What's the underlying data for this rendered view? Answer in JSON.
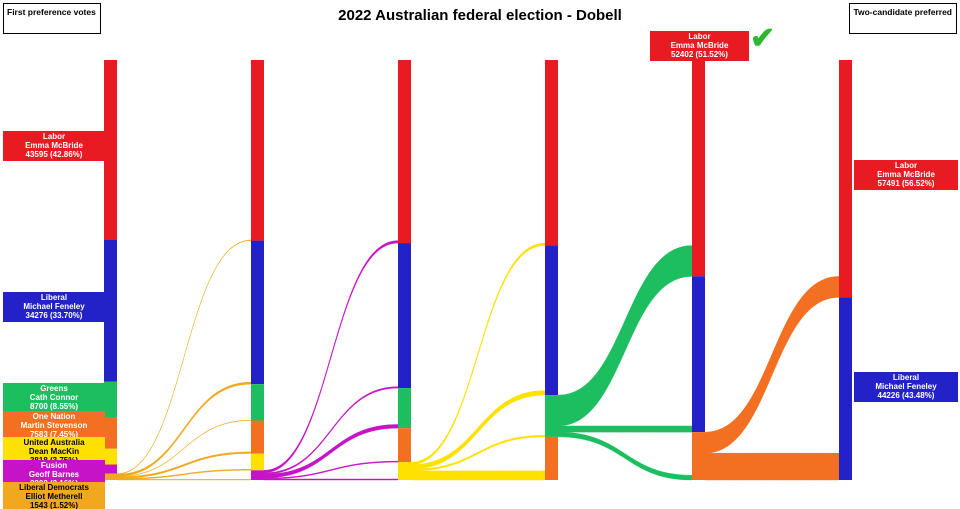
{
  "title": "2022 Australian federal election - Dobell",
  "left_header": "First preference votes",
  "right_header": "Two-candidate preferred",
  "winner_callout": {
    "party": "Labor",
    "candidate": "Emma McBride",
    "display": "52402 (51.52%)",
    "check_icon": "✔",
    "check_color": "#2eb82e"
  },
  "first_preferences": [
    {
      "key": "labor",
      "party": "Labor",
      "candidate": "Emma McBride",
      "display": "43595 (42.86%)",
      "votes": 43595,
      "pct": 42.86
    },
    {
      "key": "liberal",
      "party": "Liberal",
      "candidate": "Michael Feneley",
      "display": "34276 (33.70%)",
      "votes": 34276,
      "pct": 33.7
    },
    {
      "key": "greens",
      "party": "Greens",
      "candidate": "Cath Connor",
      "display": "8700 (8.55%)",
      "votes": 8700,
      "pct": 8.55
    },
    {
      "key": "onenation",
      "party": "One Nation",
      "candidate": "Martin Stevenson",
      "display": "7583 (7.45%)",
      "votes": 7583,
      "pct": 7.45
    },
    {
      "key": "uap",
      "party": "United Australia",
      "candidate": "Dean MacKin",
      "display": "3818 (3.75%)",
      "votes": 3818,
      "pct": 3.75
    },
    {
      "key": "fusion",
      "party": "Fusion",
      "candidate": "Geoff Barnes",
      "display": "2202 (2.16%)",
      "votes": 2202,
      "pct": 2.16
    },
    {
      "key": "libdem",
      "party": "Liberal Democrats",
      "candidate": "Elliot Metherell",
      "display": "1543 (1.52%)",
      "votes": 1543,
      "pct": 1.52
    }
  ],
  "two_candidate_preferred": [
    {
      "key": "labor",
      "party": "Labor",
      "candidate": "Emma McBride",
      "display": "57491 (56.52%)",
      "votes": 57491,
      "pct": 56.52
    },
    {
      "key": "liberal",
      "party": "Liberal",
      "candidate": "Michael Feneley",
      "display": "44226 (43.48%)",
      "votes": 44226,
      "pct": 43.48
    }
  ],
  "chart_data": {
    "type": "sankey",
    "title": "2022 Australian federal election - Dobell",
    "unit": "votes",
    "total_votes": 101717,
    "party_order": [
      "labor",
      "liberal",
      "greens",
      "onenation",
      "uap",
      "fusion",
      "libdem"
    ],
    "party_colors": {
      "labor": "#e81b23",
      "liberal": "#2222c8",
      "greens": "#1dbe60",
      "onenation": "#f36f21",
      "uap": "#ffe100",
      "fusion": "#c713c7",
      "libdem": "#f2a81e"
    },
    "party_text_colors": {
      "labor": "#ffffff",
      "liberal": "#ffffff",
      "greens": "#ffffff",
      "onenation": "#ffffff",
      "uap": "#000000",
      "fusion": "#ffffff",
      "libdem": "#000000"
    },
    "columns": [
      {
        "stage": "first_preferences",
        "nodes": {
          "labor": 43595,
          "liberal": 34276,
          "greens": 8700,
          "onenation": 7583,
          "uap": 3818,
          "fusion": 2202,
          "libdem": 1543
        }
      },
      {
        "stage": "after_liberal_democrats_excluded",
        "nodes": {
          "labor": 43738,
          "liberal": 34776,
          "greens": 8800,
          "onenation": 7983,
          "uap": 4068,
          "fusion": 2352
        }
      },
      {
        "stage": "after_fusion_excluded",
        "nodes": {
          "labor": 44338,
          "liberal": 35126,
          "greens": 9700,
          "onenation": 8233,
          "uap": 4320
        }
      },
      {
        "stage": "after_united_australia_excluded",
        "nodes": {
          "labor": 44938,
          "liberal": 36226,
          "greens": 10120,
          "onenation": 10433
        }
      },
      {
        "stage": "after_greens_excluded",
        "nodes": {
          "labor": 52402,
          "liberal": 37726,
          "onenation": 11589
        }
      },
      {
        "stage": "two_candidate_preferred",
        "nodes": {
          "labor": 57491,
          "liberal": 44226
        }
      }
    ],
    "flows": [
      {
        "from": "libdem",
        "targets": {
          "labor": 143,
          "liberal": 500,
          "greens": 100,
          "onenation": 400,
          "uap": 250,
          "fusion": 150
        }
      },
      {
        "from": "fusion",
        "targets": {
          "labor": 600,
          "liberal": 350,
          "greens": 900,
          "onenation": 250,
          "uap": 252
        }
      },
      {
        "from": "uap",
        "targets": {
          "labor": 600,
          "liberal": 1100,
          "greens": 420,
          "onenation": 2200
        }
      },
      {
        "from": "greens",
        "targets": {
          "labor": 7464,
          "liberal": 1500,
          "onenation": 1156
        }
      },
      {
        "from": "onenation",
        "targets": {
          "labor": 5089,
          "liberal": 6500
        }
      }
    ],
    "flows_estimated": true,
    "known_checkpoints": {
      "labor_after_greens_excluded": 52402,
      "labor_final": 57491,
      "liberal_final": 44226
    }
  }
}
